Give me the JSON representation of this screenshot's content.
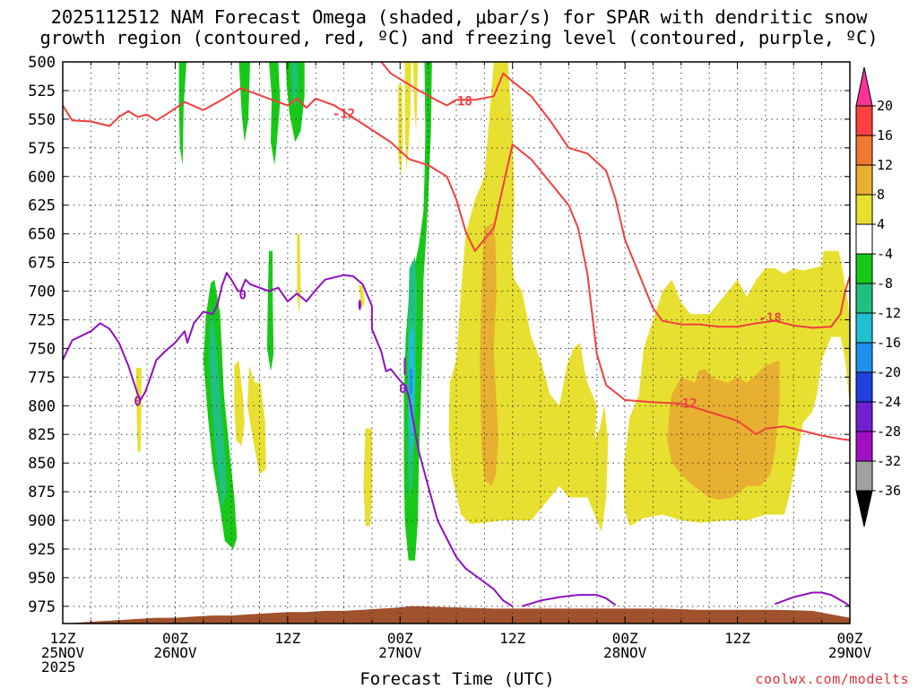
{
  "title_line1": "2025112512 NAM Forecast Omega (shaded, μbar/s) for SPAR with dendritic snow",
  "title_line2": "growth region (contoured, red, ºC) and freezing level (contoured, purple, ºC)",
  "xlabel": "Forecast Time (UTC)",
  "credit": "coolwx.com/modelts",
  "chart_data": {
    "type": "contour",
    "ylim": [
      500,
      990
    ],
    "xlim_hours": [
      0,
      84
    ],
    "y_ticks": [
      500,
      525,
      550,
      575,
      600,
      625,
      650,
      675,
      700,
      725,
      750,
      775,
      800,
      825,
      850,
      875,
      900,
      925,
      950,
      975
    ],
    "x_ticks": [
      {
        "h": 0,
        "l1": "12Z",
        "l2": "25NOV",
        "l3": "2025"
      },
      {
        "h": 12,
        "l1": "00Z",
        "l2": "26NOV",
        "l3": ""
      },
      {
        "h": 24,
        "l1": "12Z",
        "l2": "",
        "l3": ""
      },
      {
        "h": 36,
        "l1": "00Z",
        "l2": "27NOV",
        "l3": ""
      },
      {
        "h": 48,
        "l1": "12Z",
        "l2": "",
        "l3": ""
      },
      {
        "h": 60,
        "l1": "00Z",
        "l2": "28NOV",
        "l3": ""
      },
      {
        "h": 72,
        "l1": "12Z",
        "l2": "",
        "l3": ""
      },
      {
        "h": 84,
        "l1": "00Z",
        "l2": "29NOV",
        "l3": ""
      }
    ],
    "grid": true,
    "colorbar": {
      "labels": [
        "20",
        "16",
        "12",
        "8",
        "4",
        "-4",
        "-8",
        "-12",
        "-16",
        "-20",
        "-24",
        "-28",
        "-32",
        "-36"
      ],
      "colors": [
        "#ff3399",
        "#ff4040",
        "#f07830",
        "#e8b030",
        "#e8e030",
        "#ffffff",
        "#18c818",
        "#20c080",
        "#20c0d0",
        "#2090f0",
        "#2040e0",
        "#7020d0",
        "#a010c0",
        "#a0a0a0",
        "#000000"
      ]
    },
    "omega_colors": {
      "pos4": "#e8e030",
      "pos8": "#e8b030",
      "neg4": "#18c818",
      "neg8": "#20c080",
      "neg12": "#20c0d0",
      "neg16": "#2090f0"
    },
    "terrain_color": "#a0522d",
    "dgz_color": "#f04040",
    "freeze_color": "#9010c0",
    "series": [
      {
        "name": "-12",
        "color": "#f04040",
        "points": [
          [
            0,
            538
          ],
          [
            1,
            551
          ],
          [
            3,
            552
          ],
          [
            5,
            556
          ],
          [
            6,
            548
          ],
          [
            7,
            543
          ],
          [
            8,
            548
          ],
          [
            9,
            546
          ],
          [
            10,
            551
          ],
          [
            11,
            546
          ],
          [
            13,
            535
          ],
          [
            15,
            542
          ],
          [
            17,
            533
          ],
          [
            18,
            528
          ],
          [
            19,
            523
          ],
          [
            20,
            526
          ],
          [
            22,
            532
          ],
          [
            24,
            538
          ],
          [
            25,
            532
          ],
          [
            26,
            540
          ],
          [
            27,
            532
          ],
          [
            29,
            538
          ],
          [
            32,
            554
          ],
          [
            35,
            570
          ],
          [
            37,
            585
          ],
          [
            39,
            590
          ],
          [
            41,
            600
          ],
          [
            42,
            620
          ],
          [
            43,
            648
          ],
          [
            44,
            665
          ],
          [
            46,
            645
          ],
          [
            47,
            608
          ],
          [
            48,
            572
          ],
          [
            50,
            585
          ],
          [
            52,
            605
          ],
          [
            54,
            625
          ],
          [
            55,
            645
          ],
          [
            56,
            685
          ],
          [
            57,
            755
          ],
          [
            58,
            782
          ],
          [
            60,
            795
          ],
          [
            63,
            797
          ],
          [
            66,
            798
          ],
          [
            70,
            808
          ],
          [
            72,
            813
          ],
          [
            74,
            825
          ],
          [
            75,
            820
          ],
          [
            77,
            818
          ],
          [
            79,
            822
          ],
          [
            81,
            826
          ],
          [
            83,
            829
          ],
          [
            84,
            830
          ]
        ]
      },
      {
        "name": "-18",
        "color": "#f04040",
        "points": [
          [
            34,
            500
          ],
          [
            35,
            510
          ],
          [
            38,
            525
          ],
          [
            40,
            534
          ],
          [
            41,
            538
          ],
          [
            42,
            533
          ],
          [
            44,
            533
          ],
          [
            46,
            530
          ],
          [
            47,
            510
          ],
          [
            48,
            517
          ],
          [
            50,
            530
          ],
          [
            52,
            551
          ],
          [
            54,
            575
          ],
          [
            56,
            580
          ],
          [
            58,
            595
          ],
          [
            59,
            620
          ],
          [
            60,
            655
          ],
          [
            62,
            695
          ],
          [
            63,
            715
          ],
          [
            64,
            726
          ],
          [
            66,
            729
          ],
          [
            68,
            729
          ],
          [
            70,
            731
          ],
          [
            72,
            731
          ],
          [
            74,
            728
          ],
          [
            76,
            726
          ],
          [
            78,
            730
          ],
          [
            80,
            732
          ],
          [
            82,
            731
          ],
          [
            83,
            720
          ],
          [
            83.5,
            700
          ],
          [
            84,
            687
          ]
        ]
      },
      {
        "name": "0",
        "color": "#9010c0",
        "points": [
          [
            0,
            760
          ],
          [
            1,
            743
          ],
          [
            3,
            735
          ],
          [
            4,
            728
          ],
          [
            5,
            733
          ],
          [
            6,
            745
          ],
          [
            7,
            765
          ],
          [
            8,
            790
          ],
          [
            8.3,
            795
          ],
          [
            8.8,
            788
          ],
          [
            9.5,
            772
          ],
          [
            10,
            760
          ],
          [
            11,
            752
          ],
          [
            12,
            745
          ],
          [
            13,
            735
          ],
          [
            13.3,
            745
          ],
          [
            14,
            728
          ],
          [
            15,
            718
          ],
          [
            16,
            720
          ],
          [
            16.5,
            712
          ],
          [
            17,
            695
          ],
          [
            17.5,
            684
          ],
          [
            18,
            690
          ],
          [
            18.7,
            700
          ],
          [
            19,
            700
          ],
          [
            19.5,
            690
          ],
          [
            20,
            694
          ],
          [
            21,
            697
          ],
          [
            22,
            700
          ],
          [
            23,
            697
          ],
          [
            24,
            709
          ],
          [
            25,
            702
          ],
          [
            26,
            709
          ],
          [
            27,
            699
          ],
          [
            28,
            690
          ],
          [
            30,
            686
          ],
          [
            31,
            687
          ],
          [
            32,
            694
          ],
          [
            33,
            713
          ],
          [
            33,
            733
          ],
          [
            34,
            753
          ],
          [
            34.5,
            770
          ],
          [
            35,
            768
          ],
          [
            36,
            778
          ],
          [
            36.6,
            783
          ],
          [
            37,
            794
          ],
          [
            37.5,
            818
          ],
          [
            38,
            840
          ],
          [
            39,
            870
          ],
          [
            40,
            900
          ],
          [
            41,
            916
          ],
          [
            42,
            932
          ],
          [
            43,
            942
          ],
          [
            45,
            954
          ],
          [
            46,
            960
          ],
          [
            47,
            970
          ],
          [
            48,
            975
          ]
        ]
      },
      {
        "name": "0",
        "color": "#9010c0",
        "points": [
          [
            49,
            975
          ],
          [
            51,
            970
          ],
          [
            53,
            967
          ],
          [
            55,
            965
          ],
          [
            57,
            965
          ],
          [
            58,
            968
          ],
          [
            59,
            974
          ]
        ]
      },
      {
        "name": "0",
        "color": "#9010c0",
        "points": [
          [
            76,
            973
          ],
          [
            78,
            967
          ],
          [
            80,
            963
          ],
          [
            81,
            963
          ],
          [
            82,
            965
          ],
          [
            83.5,
            972
          ],
          [
            84,
            975
          ]
        ]
      }
    ],
    "contour_labels": [
      {
        "text": "-12",
        "h": 30,
        "p": 545,
        "color": "#f04040"
      },
      {
        "text": "-18",
        "h": 42.5,
        "p": 534,
        "color": "#f04040"
      },
      {
        "text": "-18",
        "h": 75.5,
        "p": 723,
        "color": "#f04040"
      },
      {
        "text": "-12",
        "h": 66.5,
        "p": 798,
        "color": "#f04040"
      },
      {
        "text": "0",
        "h": 19.2,
        "p": 703,
        "color": "#9010c0"
      },
      {
        "text": "0",
        "h": 8,
        "p": 796,
        "color": "#9010c0"
      },
      {
        "text": "0",
        "h": 36.3,
        "p": 785,
        "color": "#9010c0"
      }
    ]
  }
}
